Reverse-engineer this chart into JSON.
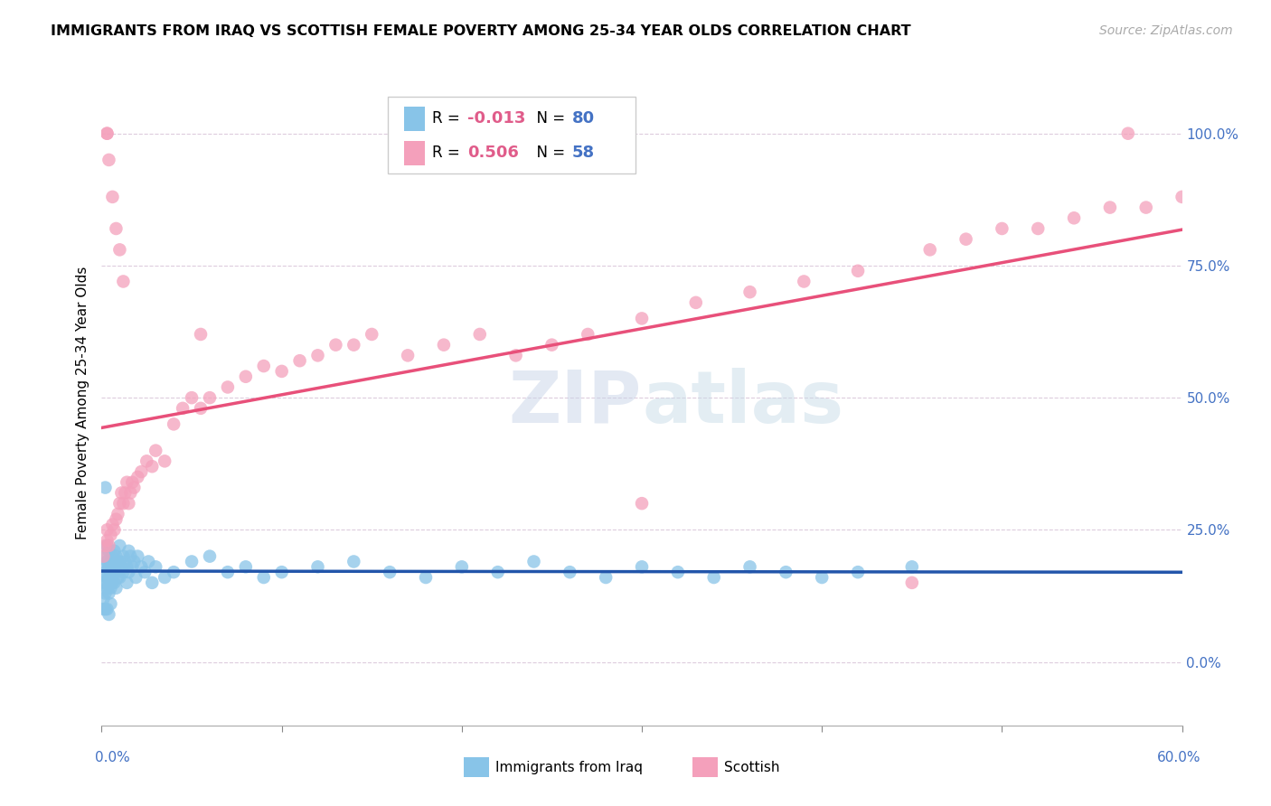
{
  "title": "IMMIGRANTS FROM IRAQ VS SCOTTISH FEMALE POVERTY AMONG 25-34 YEAR OLDS CORRELATION CHART",
  "source": "Source: ZipAtlas.com",
  "ylabel": "Female Poverty Among 25-34 Year Olds",
  "right_yticks": [
    0.0,
    0.25,
    0.5,
    0.75,
    1.0
  ],
  "right_ytick_labels": [
    "0.0%",
    "25.0%",
    "50.0%",
    "75.0%",
    "100.0%"
  ],
  "legend_blue_r": "-0.013",
  "legend_blue_n": "80",
  "legend_pink_r": "0.506",
  "legend_pink_n": "58",
  "watermark": "ZIPatlas",
  "blue_color": "#88c4e8",
  "pink_color": "#f4a0bb",
  "trend_blue_color": "#2255aa",
  "trend_pink_color": "#e8507a",
  "background_color": "#ffffff",
  "xlim": [
    0.0,
    0.6
  ],
  "ylim": [
    -0.12,
    1.1
  ],
  "blue_x": [
    0.001,
    0.001,
    0.001,
    0.001,
    0.002,
    0.002,
    0.002,
    0.002,
    0.002,
    0.003,
    0.003,
    0.003,
    0.003,
    0.003,
    0.004,
    0.004,
    0.004,
    0.004,
    0.004,
    0.005,
    0.005,
    0.005,
    0.005,
    0.006,
    0.006,
    0.006,
    0.007,
    0.007,
    0.007,
    0.008,
    0.008,
    0.008,
    0.009,
    0.009,
    0.01,
    0.01,
    0.01,
    0.011,
    0.012,
    0.012,
    0.013,
    0.014,
    0.014,
    0.015,
    0.015,
    0.016,
    0.017,
    0.018,
    0.019,
    0.02,
    0.022,
    0.024,
    0.026,
    0.028,
    0.03,
    0.035,
    0.04,
    0.05,
    0.06,
    0.07,
    0.08,
    0.09,
    0.1,
    0.12,
    0.14,
    0.16,
    0.18,
    0.2,
    0.22,
    0.24,
    0.26,
    0.28,
    0.3,
    0.32,
    0.34,
    0.36,
    0.38,
    0.4,
    0.42,
    0.45
  ],
  "blue_y": [
    0.18,
    0.15,
    0.12,
    0.1,
    0.2,
    0.17,
    0.15,
    0.13,
    0.1,
    0.22,
    0.19,
    0.16,
    0.14,
    0.1,
    0.21,
    0.18,
    0.16,
    0.13,
    0.09,
    0.19,
    0.17,
    0.14,
    0.11,
    0.2,
    0.18,
    0.15,
    0.21,
    0.18,
    0.15,
    0.2,
    0.17,
    0.14,
    0.19,
    0.16,
    0.22,
    0.19,
    0.16,
    0.18,
    0.2,
    0.17,
    0.19,
    0.18,
    0.15,
    0.21,
    0.17,
    0.2,
    0.18,
    0.19,
    0.16,
    0.2,
    0.18,
    0.17,
    0.19,
    0.15,
    0.18,
    0.16,
    0.17,
    0.19,
    0.2,
    0.17,
    0.18,
    0.16,
    0.17,
    0.18,
    0.19,
    0.17,
    0.16,
    0.18,
    0.17,
    0.19,
    0.17,
    0.16,
    0.18,
    0.17,
    0.16,
    0.18,
    0.17,
    0.16,
    0.17,
    0.18
  ],
  "blue_special_x": [
    0.002
  ],
  "blue_special_y": [
    0.33
  ],
  "pink_x": [
    0.001,
    0.002,
    0.003,
    0.003,
    0.004,
    0.005,
    0.006,
    0.007,
    0.008,
    0.009,
    0.01,
    0.011,
    0.012,
    0.013,
    0.014,
    0.015,
    0.016,
    0.017,
    0.018,
    0.02,
    0.022,
    0.025,
    0.028,
    0.03,
    0.035,
    0.04,
    0.045,
    0.05,
    0.055,
    0.06,
    0.07,
    0.08,
    0.09,
    0.1,
    0.11,
    0.12,
    0.13,
    0.14,
    0.15,
    0.17,
    0.19,
    0.21,
    0.23,
    0.25,
    0.27,
    0.3,
    0.33,
    0.36,
    0.39,
    0.42,
    0.46,
    0.48,
    0.5,
    0.52,
    0.54,
    0.56,
    0.58,
    0.6
  ],
  "pink_y": [
    0.2,
    0.22,
    0.23,
    0.25,
    0.22,
    0.24,
    0.26,
    0.25,
    0.27,
    0.28,
    0.3,
    0.32,
    0.3,
    0.32,
    0.34,
    0.3,
    0.32,
    0.34,
    0.33,
    0.35,
    0.36,
    0.38,
    0.37,
    0.4,
    0.38,
    0.45,
    0.48,
    0.5,
    0.48,
    0.5,
    0.52,
    0.54,
    0.56,
    0.55,
    0.57,
    0.58,
    0.6,
    0.6,
    0.62,
    0.58,
    0.6,
    0.62,
    0.58,
    0.6,
    0.62,
    0.65,
    0.68,
    0.7,
    0.72,
    0.74,
    0.78,
    0.8,
    0.82,
    0.82,
    0.84,
    0.86,
    0.86,
    0.88
  ],
  "pink_outlier_x": [
    0.003,
    0.003,
    0.004,
    0.006,
    0.008,
    0.01,
    0.012,
    0.055,
    0.3,
    0.45,
    0.57
  ],
  "pink_outlier_y": [
    1.0,
    1.0,
    0.95,
    0.88,
    0.82,
    0.78,
    0.72,
    0.62,
    0.3,
    0.15,
    1.0
  ]
}
